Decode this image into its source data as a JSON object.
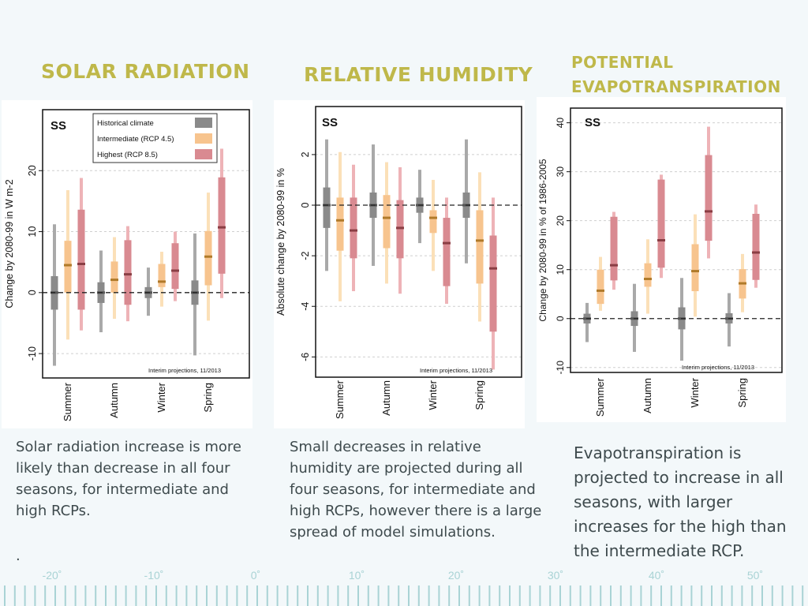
{
  "headers": {
    "solar": "SOLAR RADIATION",
    "humidity": "RELATIVE HUMIDITY",
    "evap_line1": "POTENTIAL",
    "evap_line2": "EVAPOTRANSPIRATION"
  },
  "descriptions": {
    "solar": "Solar radiation increase is more likely than decrease in all four seasons, for intermediate and high RCPs.",
    "solar_extra": ".",
    "humidity": "Small decreases in relative humidity are projected during all four seasons, for intermediate and high RCPs, however there is a large spread of model simulations.",
    "evap": "Evapotranspiration is projected to increase in all seasons, with larger increases for the high than the intermediate RCP."
  },
  "ruler": {
    "labels": [
      "-20˚",
      "-10˚",
      "0˚",
      "10˚",
      "20˚",
      "30˚",
      "40˚",
      "50˚"
    ],
    "color": "#a9d3d5"
  },
  "colors": {
    "historical_outer": "#a9a9a9",
    "historical_inner": "#8a8a8a",
    "historical_median": "#555555",
    "rcp45_outer": "#fbe0b8",
    "rcp45_inner": "#f7c48e",
    "rcp45_median": "#b07a2a",
    "rcp85_outer": "#eeb3b7",
    "rcp85_inner": "#d98a91",
    "rcp85_median": "#8a3e44",
    "header": "#bfb84a"
  },
  "chart_data": [
    {
      "type": "box",
      "panel_label": "SS",
      "ylabel": "Change by 2080-99 in W m-2",
      "ylim": [
        -14,
        30
      ],
      "yticks": [
        -10,
        0,
        10,
        20
      ],
      "ytick_labels": [
        "-10",
        "0",
        "10",
        "20"
      ],
      "grid": true,
      "legend_position": "top",
      "footnote": "Interim projections, 11/2013",
      "categories": [
        "Summer",
        "Autumn",
        "Winter",
        "Spring"
      ],
      "legend": [
        "Historical climate",
        "Intermediate (RCP 4.5)",
        "Highest (RCP 8.5)"
      ],
      "series": [
        {
          "name": "Historical climate",
          "boxes": [
            {
              "low": -12,
              "q1": -2.8,
              "median": 0,
              "q3": 2.7,
              "high": 11.2
            },
            {
              "low": -6.5,
              "q1": -1.7,
              "median": 0,
              "q3": 1.7,
              "high": 6.9
            },
            {
              "low": -3.8,
              "q1": -0.9,
              "median": 0,
              "q3": 0.9,
              "high": 4.1
            },
            {
              "low": -10.3,
              "q1": -2,
              "median": 0,
              "q3": 2,
              "high": 9.7
            }
          ]
        },
        {
          "name": "Intermediate (RCP 4.5)",
          "boxes": [
            {
              "low": -7.7,
              "q1": 0,
              "median": 4.5,
              "q3": 8.5,
              "high": 16.8
            },
            {
              "low": -4.3,
              "q1": 0,
              "median": 2.1,
              "q3": 5.1,
              "high": 9.1
            },
            {
              "low": -2.3,
              "q1": 0.9,
              "median": 1.8,
              "q3": 4.7,
              "high": 6.7
            },
            {
              "low": -4.6,
              "q1": 1.2,
              "median": 5.9,
              "q3": 10.1,
              "high": 16.4
            }
          ]
        },
        {
          "name": "Highest (RCP 8.5)",
          "boxes": [
            {
              "low": -6.2,
              "q1": -2.8,
              "median": 4.7,
              "q3": 13.6,
              "high": 18.8
            },
            {
              "low": -4.7,
              "q1": -2,
              "median": 3,
              "q3": 8.6,
              "high": 10.9
            },
            {
              "low": -1.4,
              "q1": 0.6,
              "median": 3.6,
              "q3": 8.1,
              "high": 10
            },
            {
              "low": -0.9,
              "q1": 3.1,
              "median": 10.7,
              "q3": 18.9,
              "high": 23.6
            }
          ]
        }
      ]
    },
    {
      "type": "box",
      "panel_label": "SS",
      "ylabel": "Absolute change by 2080-99 in %",
      "ylim": [
        -6.8,
        3.9
      ],
      "yticks": [
        -6,
        -4,
        -2,
        0,
        2
      ],
      "ytick_labels": [
        "-6",
        "-4",
        "-2",
        "0",
        "2"
      ],
      "grid": true,
      "legend_position": "none",
      "footnote": "Interim projections, 11/2013",
      "categories": [
        "Summer",
        "Autumn",
        "Winter",
        "Spring"
      ],
      "series": [
        {
          "name": "Historical climate",
          "boxes": [
            {
              "low": -2.6,
              "q1": -0.9,
              "median": 0,
              "q3": 0.7,
              "high": 2.6
            },
            {
              "low": -2.4,
              "q1": -0.5,
              "median": 0,
              "q3": 0.5,
              "high": 2.4
            },
            {
              "low": -1.5,
              "q1": -0.3,
              "median": 0,
              "q3": 0.3,
              "high": 1.4
            },
            {
              "low": -2.3,
              "q1": -0.5,
              "median": 0,
              "q3": 0.5,
              "high": 2.6
            }
          ]
        },
        {
          "name": "Intermediate (RCP 4.5)",
          "boxes": [
            {
              "low": -3.8,
              "q1": -1.8,
              "median": -0.6,
              "q3": 0.3,
              "high": 2.1
            },
            {
              "low": -3.1,
              "q1": -1.7,
              "median": -0.5,
              "q3": 0.4,
              "high": 1.7
            },
            {
              "low": -2.6,
              "q1": -1.1,
              "median": -0.5,
              "q3": -0.2,
              "high": 1
            },
            {
              "low": -4.6,
              "q1": -3.1,
              "median": -1.4,
              "q3": -0.2,
              "high": 1.3
            }
          ]
        },
        {
          "name": "Highest (RCP 8.5)",
          "boxes": [
            {
              "low": -3.4,
              "q1": -2.1,
              "median": -1,
              "q3": 0.3,
              "high": 1.6
            },
            {
              "low": -3.5,
              "q1": -2.1,
              "median": -0.9,
              "q3": 0.2,
              "high": 1.5
            },
            {
              "low": -3.9,
              "q1": -3.2,
              "median": -1.5,
              "q3": -0.5,
              "high": 0.3
            },
            {
              "low": -6.5,
              "q1": -5,
              "median": -2.5,
              "q3": -1.2,
              "high": 0.3
            }
          ]
        }
      ]
    },
    {
      "type": "box",
      "panel_label": "SS",
      "ylabel": "Change by 2080-99 in % of 1986-2005",
      "ylim": [
        -11,
        43
      ],
      "yticks": [
        -10,
        0,
        10,
        20,
        30,
        40
      ],
      "ytick_labels": [
        "-10",
        "0",
        "10",
        "20",
        "30",
        "40"
      ],
      "grid": true,
      "legend_position": "none",
      "footnote": "Interim projections, 11/2013",
      "categories": [
        "Summer",
        "Autumn",
        "Winter",
        "Spring"
      ],
      "series": [
        {
          "name": "Historical climate",
          "boxes": [
            {
              "low": -4.8,
              "q1": -1,
              "median": 0,
              "q3": 1,
              "high": 3.2
            },
            {
              "low": -6.8,
              "q1": -1.5,
              "median": 0,
              "q3": 1.5,
              "high": 7.1
            },
            {
              "low": -8.6,
              "q1": -2.2,
              "median": 0,
              "q3": 2.3,
              "high": 8.3
            },
            {
              "low": -5.7,
              "q1": -1,
              "median": 0,
              "q3": 1.1,
              "high": 5.2
            }
          ]
        },
        {
          "name": "Intermediate (RCP 4.5)",
          "boxes": [
            {
              "low": 1.6,
              "q1": 3,
              "median": 5.7,
              "q3": 10,
              "high": 12.6
            },
            {
              "low": 1,
              "q1": 6.5,
              "median": 8.1,
              "q3": 11.3,
              "high": 16.2
            },
            {
              "low": 0.4,
              "q1": 5.6,
              "median": 9.7,
              "q3": 15.2,
              "high": 21.3
            },
            {
              "low": 1.3,
              "q1": 4.1,
              "median": 7.2,
              "q3": 10.1,
              "high": 13.2
            }
          ]
        },
        {
          "name": "Highest (RCP 8.5)",
          "boxes": [
            {
              "low": 5.9,
              "q1": 7.8,
              "median": 10.9,
              "q3": 20.8,
              "high": 21.8
            },
            {
              "low": 8.3,
              "q1": 10.4,
              "median": 16,
              "q3": 28.4,
              "high": 29.4
            },
            {
              "low": 12.3,
              "q1": 15.9,
              "median": 21.9,
              "q3": 33.4,
              "high": 39.2
            },
            {
              "low": 6.3,
              "q1": 7.9,
              "median": 13.5,
              "q3": 21.4,
              "high": 23.3
            }
          ]
        }
      ]
    }
  ]
}
